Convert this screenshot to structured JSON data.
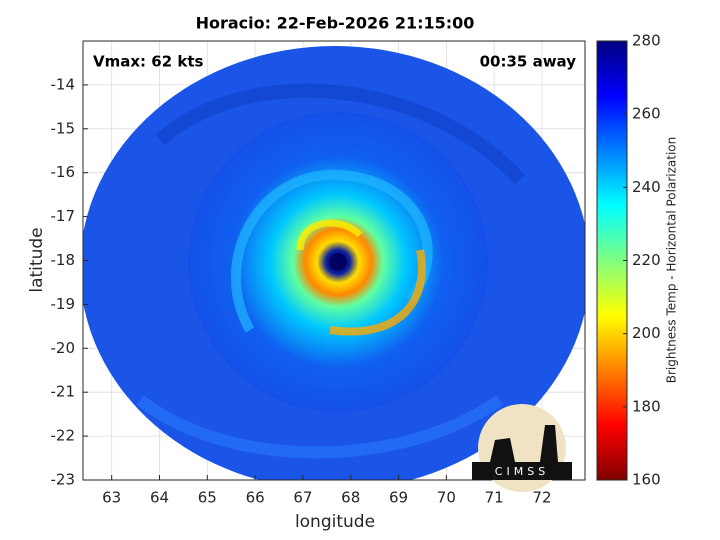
{
  "chart_data": {
    "type": "image",
    "title": "Horacio: 22-Feb-2026 21:15:00",
    "annotations": [
      "Vmax: 62 kts",
      "00:35 away"
    ],
    "xlabel": "longitude",
    "ylabel": "latitude",
    "xlim": [
      62.4,
      72.9
    ],
    "xticks": [
      63,
      64,
      65,
      66,
      67,
      68,
      69,
      70,
      71,
      72
    ],
    "ylim": [
      -23,
      -13
    ],
    "yticks": [
      -14,
      -15,
      -16,
      -17,
      -18,
      -19,
      -20,
      -21,
      -22,
      -23
    ],
    "grid": true,
    "colorbar": {
      "label": "Brightness Temp - Horizontal Polarization",
      "clim": [
        160,
        280
      ],
      "ticks": [
        160,
        180,
        200,
        220,
        240,
        260,
        280
      ],
      "colormap": [
        "#800000",
        "#ff0000",
        "#ff8000",
        "#ffff00",
        "#80ff80",
        "#00ffff",
        "#0080ff",
        "#0000ff",
        "#000080"
      ]
    },
    "logo_text": "CIMSS"
  }
}
